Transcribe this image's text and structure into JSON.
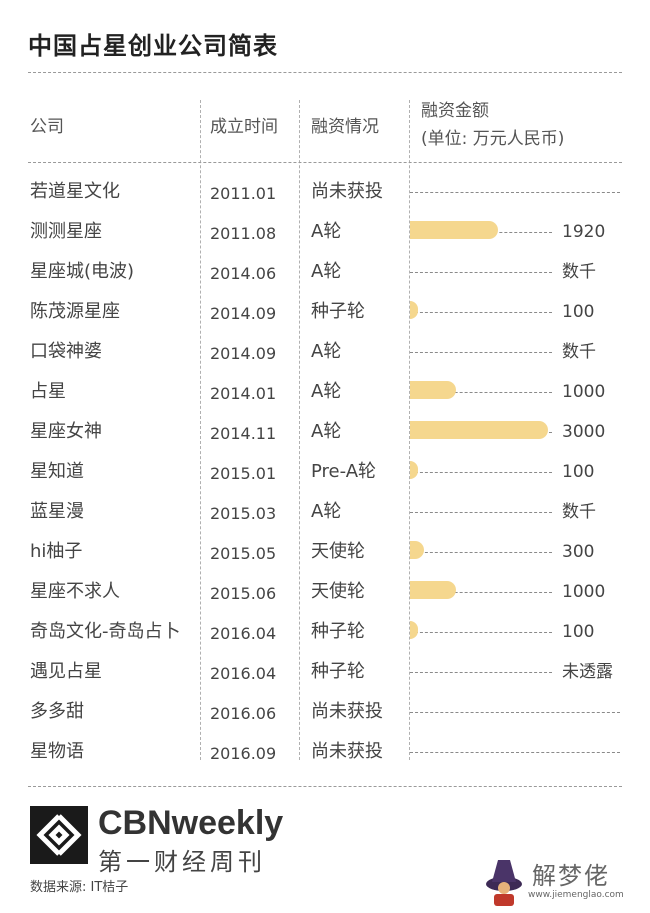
{
  "title": "中国占星创业公司简表",
  "headers": {
    "company": "公司",
    "founded": "成立时间",
    "financing": "融资情况",
    "amount_line1": "融资金额",
    "amount_line2": "(单位: 万元人民币)"
  },
  "chart_data": {
    "type": "bar",
    "orientation": "horizontal",
    "title": "中国占星创业公司简表",
    "unit": "万元人民币",
    "bar_color": "#f5d78e",
    "max_value": 3000,
    "rows": [
      {
        "company": "若道星文化",
        "founded": "2011.01",
        "round": "尚未获投",
        "value": null,
        "amount_label": ""
      },
      {
        "company": "测测星座",
        "founded": "2011.08",
        "round": "A轮",
        "value": 1920,
        "amount_label": "1920"
      },
      {
        "company": "星座城(电波)",
        "founded": "2014.06",
        "round": "A轮",
        "value": null,
        "amount_label": "数千"
      },
      {
        "company": "陈茂源星座",
        "founded": "2014.09",
        "round": "种子轮",
        "value": 100,
        "amount_label": "100"
      },
      {
        "company": "口袋神婆",
        "founded": "2014.09",
        "round": "A轮",
        "value": null,
        "amount_label": "数千"
      },
      {
        "company": "占星",
        "founded": "2014.01",
        "round": "A轮",
        "value": 1000,
        "amount_label": "1000"
      },
      {
        "company": "星座女神",
        "founded": "2014.11",
        "round": "A轮",
        "value": 3000,
        "amount_label": "3000"
      },
      {
        "company": "星知道",
        "founded": "2015.01",
        "round": "Pre-A轮",
        "value": 100,
        "amount_label": "100"
      },
      {
        "company": "蓝星漫",
        "founded": "2015.03",
        "round": "A轮",
        "value": null,
        "amount_label": "数千"
      },
      {
        "company": "hi柚子",
        "founded": "2015.05",
        "round": "天使轮",
        "value": 300,
        "amount_label": "300"
      },
      {
        "company": "星座不求人",
        "founded": "2015.06",
        "round": "天使轮",
        "value": 1000,
        "amount_label": "1000"
      },
      {
        "company": "奇岛文化-奇岛占卜",
        "founded": "2016.04",
        "round": "种子轮",
        "value": 100,
        "amount_label": "100"
      },
      {
        "company": "遇见占星",
        "founded": "2016.04",
        "round": "种子轮",
        "value": null,
        "amount_label": "未透露"
      },
      {
        "company": "多多甜",
        "founded": "2016.06",
        "round": "尚未获投",
        "value": null,
        "amount_label": ""
      },
      {
        "company": "星物语",
        "founded": "2016.09",
        "round": "尚未获投",
        "value": null,
        "amount_label": ""
      }
    ]
  },
  "footer": {
    "brand": "CBNweekly",
    "brand_cn": "第一财经周刊",
    "source": "数据来源: IT桔子"
  },
  "watermark": {
    "text": "解梦佬",
    "url": "www.jiemenglao.com"
  }
}
